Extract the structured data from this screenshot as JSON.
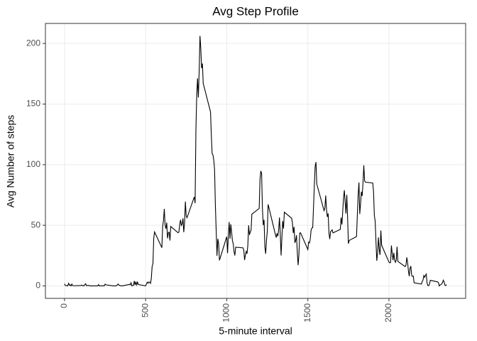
{
  "chart_data": {
    "type": "line",
    "title": "Avg Step Profile",
    "x_label": "5-minute interval",
    "y_label": "Avg Number of steps",
    "color": "#000000",
    "grid": true,
    "xlim": [
      -117.75,
      2472.75
    ],
    "xticks": [
      0,
      500,
      1000,
      1500,
      2000
    ],
    "ylim": [
      -10.3,
      216.5
    ],
    "yticks": [
      0,
      50,
      100,
      150,
      200
    ],
    "x": [
      0,
      5,
      10,
      15,
      20,
      25,
      30,
      35,
      40,
      45,
      50,
      55,
      100,
      105,
      110,
      115,
      120,
      125,
      130,
      135,
      140,
      145,
      150,
      155,
      200,
      205,
      210,
      215,
      220,
      225,
      230,
      235,
      240,
      245,
      250,
      255,
      300,
      305,
      310,
      315,
      320,
      325,
      330,
      335,
      340,
      345,
      350,
      355,
      400,
      405,
      410,
      415,
      420,
      425,
      430,
      435,
      440,
      445,
      450,
      455,
      500,
      505,
      510,
      515,
      520,
      525,
      530,
      535,
      540,
      545,
      550,
      555,
      600,
      605,
      610,
      615,
      620,
      625,
      630,
      635,
      640,
      645,
      650,
      655,
      700,
      705,
      710,
      715,
      720,
      725,
      730,
      735,
      740,
      745,
      750,
      755,
      800,
      805,
      810,
      815,
      820,
      825,
      830,
      835,
      840,
      845,
      850,
      855,
      900,
      905,
      910,
      915,
      920,
      925,
      930,
      935,
      940,
      945,
      950,
      955,
      1000,
      1005,
      1010,
      1015,
      1020,
      1025,
      1030,
      1035,
      1040,
      1045,
      1050,
      1055,
      1100,
      1105,
      1110,
      1115,
      1120,
      1125,
      1130,
      1135,
      1140,
      1145,
      1150,
      1155,
      1200,
      1205,
      1210,
      1215,
      1220,
      1225,
      1230,
      1235,
      1240,
      1245,
      1250,
      1255,
      1300,
      1305,
      1310,
      1315,
      1320,
      1325,
      1330,
      1335,
      1340,
      1345,
      1350,
      1355,
      1400,
      1405,
      1410,
      1415,
      1420,
      1425,
      1430,
      1435,
      1440,
      1445,
      1450,
      1455,
      1500,
      1505,
      1510,
      1515,
      1520,
      1525,
      1530,
      1535,
      1540,
      1545,
      1550,
      1555,
      1600,
      1605,
      1610,
      1615,
      1620,
      1625,
      1630,
      1635,
      1640,
      1645,
      1650,
      1655,
      1700,
      1705,
      1710,
      1715,
      1720,
      1725,
      1730,
      1735,
      1740,
      1745,
      1750,
      1755,
      1800,
      1805,
      1810,
      1815,
      1820,
      1825,
      1830,
      1835,
      1840,
      1845,
      1850,
      1855,
      1900,
      1905,
      1910,
      1915,
      1920,
      1925,
      1930,
      1935,
      1940,
      1945,
      1950,
      1955,
      2000,
      2005,
      2010,
      2015,
      2020,
      2025,
      2030,
      2035,
      2040,
      2045,
      2050,
      2055,
      2100,
      2105,
      2110,
      2115,
      2120,
      2125,
      2130,
      2135,
      2140,
      2145,
      2150,
      2155,
      2200,
      2205,
      2210,
      2215,
      2220,
      2225,
      2230,
      2235,
      2240,
      2245,
      2250,
      2255,
      2300,
      2305,
      2310,
      2315,
      2320,
      2325,
      2330,
      2335,
      2340,
      2345,
      2350,
      2355
    ],
    "values": [
      1.7,
      0.3,
      0.1,
      0.2,
      0.1,
      2.1,
      0.5,
      0.9,
      0,
      1.5,
      0.3,
      0.1,
      0.3,
      0.7,
      0.2,
      0.3,
      0,
      1.1,
      1.8,
      0.2,
      0.2,
      0.4,
      0.3,
      0,
      0,
      0,
      1.1,
      0,
      0,
      0.1,
      0,
      0.2,
      0,
      0,
      1.5,
      0.9,
      0,
      0,
      0,
      0,
      0.2,
      0.6,
      1.6,
      0.6,
      0.5,
      0.1,
      0,
      0,
      1.2,
      0.9,
      2.6,
      0,
      0.3,
      0.4,
      4.1,
      0.7,
      3.5,
      0.8,
      3.1,
      1.1,
      0,
      1.6,
      3,
      2.2,
      3.3,
      3,
      2.1,
      6.1,
      16,
      18.3,
      39.5,
      44.5,
      31.5,
      49.3,
      53.8,
      63.5,
      50,
      47.1,
      52.2,
      39.3,
      44,
      44.2,
      37.4,
      49,
      43.8,
      44.4,
      50.5,
      54.5,
      49.9,
      51,
      55.7,
      44.3,
      52.3,
      69.5,
      57.8,
      56.2,
      73.4,
      68.2,
      129.4,
      157.5,
      171.2,
      155.4,
      177.3,
      206.2,
      195.9,
      179.6,
      183.4,
      167,
      143.5,
      124,
      109.1,
      108.1,
      103.7,
      96,
      66.2,
      45.2,
      24.8,
      38.8,
      35,
      21.1,
      40.6,
      27,
      42.4,
      52.7,
      38.9,
      50.8,
      44.3,
      37.4,
      34.7,
      28.3,
      25.1,
      31.9,
      31.4,
      29.7,
      21.3,
      25.5,
      28.4,
      26.5,
      33.4,
      50,
      42,
      44.6,
      46,
      59.2,
      63.9,
      87.7,
      94.8,
      92.8,
      63.4,
      50.2,
      54.5,
      32.4,
      26.5,
      37.7,
      45.1,
      67.3,
      42.3,
      39.9,
      43.3,
      41,
      46.2,
      56.4,
      42.8,
      25.1,
      40,
      53.5,
      47.3,
      60.8,
      55.8,
      52,
      43.6,
      48.7,
      35.5,
      37.5,
      41.8,
      27.5,
      17.1,
      26.1,
      43.6,
      43.8,
      30,
      36.1,
      35.5,
      38.8,
      46,
      47.8,
      48.1,
      65.3,
      82.9,
      98.7,
      102.1,
      84,
      62.1,
      64.1,
      74.5,
      63.2,
      56.9,
      59.8,
      43.9,
      38.6,
      44.7,
      45.5,
      46.2,
      43.7,
      46.6,
      56.3,
      50.7,
      61.2,
      72.7,
      78.9,
      68.9,
      59.7,
      75.1,
      56.5,
      34.8,
      37.5,
      40.7,
      58,
      74.7,
      85.3,
      59.3,
      67.8,
      77.7,
      74.2,
      85.3,
      99.5,
      86.6,
      85.6,
      84.9,
      77.8,
      58,
      53.4,
      36.3,
      20.7,
      27.4,
      40,
      30.2,
      25.5,
      45.7,
      33.5,
      19.6,
      19,
      19.3,
      33.3,
      26.8,
      21.2,
      27.3,
      21.3,
      19.5,
      21.3,
      32.3,
      20.2,
      15.9,
      17.2,
      23.5,
      19.2,
      12.5,
      8,
      14.7,
      16.3,
      8.7,
      7.8,
      8.1,
      2.6,
      1.5,
      3.7,
      4.8,
      8.5,
      7.1,
      8.7,
      9.8,
      2.2,
      0.3,
      0.1,
      1.6,
      4.6,
      3.3,
      2.8,
      0,
      0.8,
      1,
      1.6,
      2.6,
      4.7,
      3.3,
      0.6,
      0.2,
      1.1
    ]
  }
}
